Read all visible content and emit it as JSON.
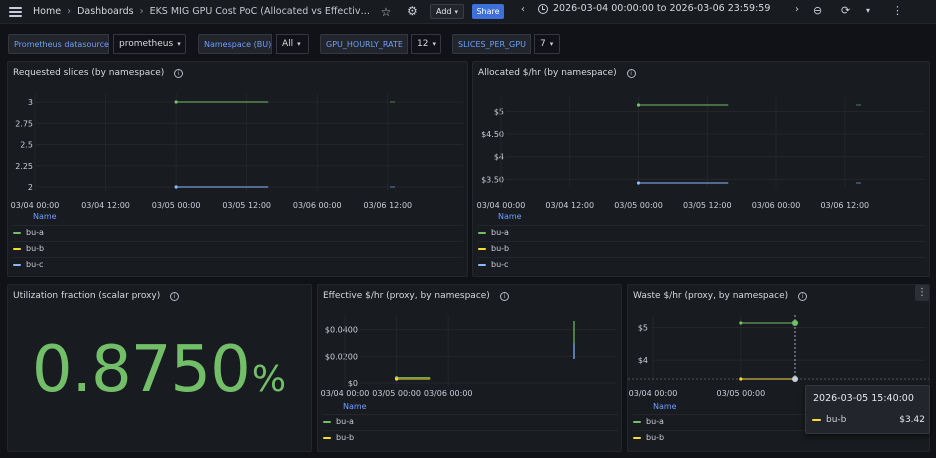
{
  "topbar": {
    "breadcrumbs": [
      "Home",
      "Dashboards",
      "EKS MIG GPU Cost PoC (Allocated vs Effective ..."
    ],
    "add_label": "Add",
    "share_label": "Share",
    "time_range": "2026-03-04 00:00:00 to 2026-03-06 23:59:59",
    "icons": [
      "menu-icon",
      "star-icon",
      "gear-icon",
      "chevron-left-icon",
      "clock-icon",
      "chevron-right-icon",
      "zoom-out-icon",
      "refresh-icon",
      "chevron-down-icon",
      "more-icon"
    ]
  },
  "variables": [
    {
      "label": "Prometheus datasource",
      "value": "prometheus"
    },
    {
      "label": "Namespace (BU)",
      "value": "All"
    },
    {
      "label": "GPU_HOURLY_RATE",
      "value": "12"
    },
    {
      "label": "SLICES_PER_GPU",
      "value": "7"
    }
  ],
  "colors": {
    "bu-a": "#73bf69",
    "bu-b": "#fade2a",
    "bu-c": "#8ab8ff",
    "accent": "#3d71d9",
    "stat": "#73bf69"
  },
  "panels": {
    "requested_slices": {
      "title": "Requested slices (by namespace)",
      "legend_header": "Name",
      "legend": [
        "bu-a",
        "bu-b",
        "bu-c"
      ]
    },
    "allocated": {
      "title": "Allocated $/hr (by namespace)",
      "legend_header": "Name",
      "legend": [
        "bu-a",
        "bu-b",
        "bu-c"
      ]
    },
    "utilization": {
      "title": "Utilization fraction (scalar proxy)",
      "value": "0.8750",
      "unit": "%"
    },
    "effective": {
      "title": "Effective $/hr (proxy, by namespace)",
      "legend_header": "Name",
      "legend": [
        "bu-a",
        "bu-b"
      ]
    },
    "waste": {
      "title": "Waste $/hr (proxy, by namespace)",
      "legend_header": "Name",
      "legend": [
        "bu-a",
        "bu-b"
      ]
    }
  },
  "tooltip": {
    "time": "2026-03-05 15:40:00",
    "series": "bu-b",
    "value": "$3.42"
  },
  "chart_data": [
    {
      "type": "line",
      "title": "Requested slices (by namespace)",
      "x_ticks": [
        "03/04 00:00",
        "03/04 12:00",
        "03/05 00:00",
        "03/05 12:00",
        "03/06 00:00",
        "03/06 12:00"
      ],
      "y_ticks": [
        "2",
        "2.25",
        "2.5",
        "2.75",
        "3"
      ],
      "ylim": [
        2,
        3
      ],
      "series": [
        {
          "name": "bu-a",
          "x": [
            "03/05 00:00",
            "03/05 15:40"
          ],
          "y": [
            3,
            3
          ]
        },
        {
          "name": "bu-c",
          "x": [
            "03/05 00:00",
            "03/05 15:40"
          ],
          "y": [
            2,
            2
          ]
        }
      ]
    },
    {
      "type": "line",
      "title": "Allocated $/hr (by namespace)",
      "x_ticks": [
        "03/04 00:00",
        "03/04 12:00",
        "03/05 00:00",
        "03/05 12:00",
        "03/06 00:00",
        "03/06 12:00"
      ],
      "y_ticks": [
        "$3.50",
        "$4",
        "$4.50",
        "$5"
      ],
      "ylim": [
        3.42,
        5.14
      ],
      "series": [
        {
          "name": "bu-a",
          "x": [
            "03/05 00:00",
            "03/05 15:40"
          ],
          "y": [
            5.14,
            5.14
          ]
        },
        {
          "name": "bu-c",
          "x": [
            "03/05 00:00",
            "03/05 15:40"
          ],
          "y": [
            3.42,
            3.42
          ]
        }
      ]
    },
    {
      "type": "line",
      "title": "Effective $/hr (proxy, by namespace)",
      "x_ticks": [
        "03/04 00:00",
        "03/05 00:00",
        "03/06 00:00"
      ],
      "y_ticks": [
        "$0",
        "$0.0200",
        "$0.0400"
      ],
      "ylim": [
        0,
        0.045
      ],
      "series": [
        {
          "name": "bu-a",
          "x": [
            "03/05 00:00",
            "03/05 15:40"
          ],
          "y": [
            0.004,
            0.004
          ]
        },
        {
          "name": "bu-b",
          "x": [
            "03/05 00:00",
            "03/05 15:40"
          ],
          "y": [
            0.003,
            0.003
          ]
        }
      ]
    },
    {
      "type": "line",
      "title": "Waste $/hr (proxy, by namespace)",
      "x_ticks": [
        "03/04 00:00",
        "03/05 00:00"
      ],
      "y_ticks": [
        "$4",
        "$5"
      ],
      "ylim": [
        3.42,
        5.14
      ],
      "series": [
        {
          "name": "bu-a",
          "x": [
            "03/05 00:00",
            "03/05 15:40"
          ],
          "y": [
            5.14,
            5.14
          ]
        },
        {
          "name": "bu-b",
          "x": [
            "03/05 00:00",
            "03/05 15:40"
          ],
          "y": [
            3.42,
            3.42
          ]
        }
      ]
    }
  ]
}
